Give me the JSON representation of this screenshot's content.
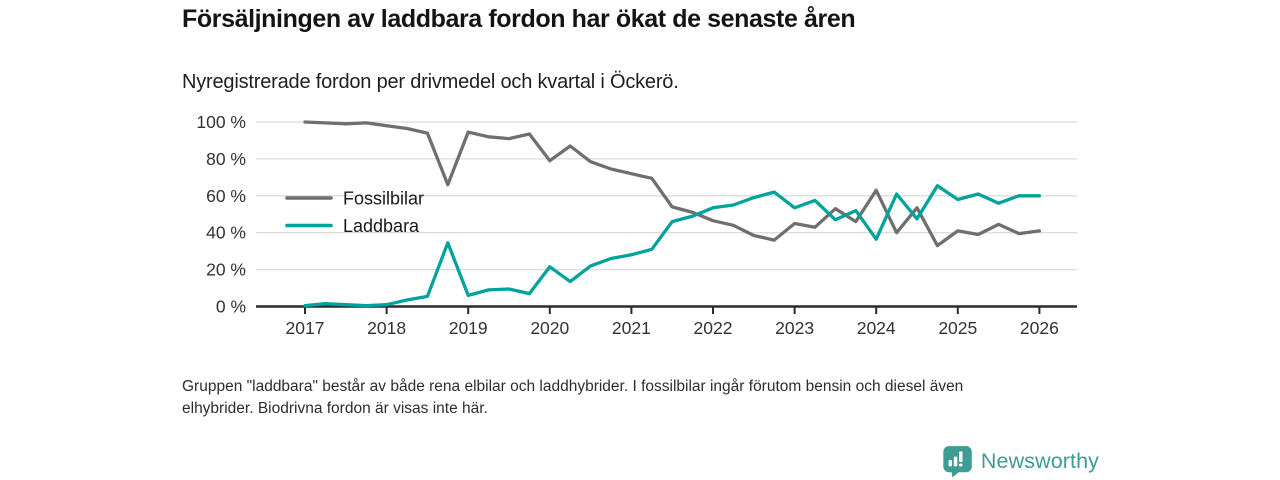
{
  "header": {
    "title": "Försäljningen av laddbara fordon har ökat de senaste åren",
    "subtitle": "Nyregistrerade fordon per drivmedel och kvartal i Öckerö."
  },
  "chart_data": {
    "type": "line",
    "x_unit": "quarter",
    "categories": [
      "2017-Q1",
      "2017-Q2",
      "2017-Q3",
      "2017-Q4",
      "2018-Q1",
      "2018-Q2",
      "2018-Q3",
      "2018-Q4",
      "2019-Q1",
      "2019-Q2",
      "2019-Q3",
      "2019-Q4",
      "2020-Q1",
      "2020-Q2",
      "2020-Q3",
      "2020-Q4",
      "2021-Q1",
      "2021-Q2",
      "2021-Q3",
      "2021-Q4",
      "2022-Q1",
      "2022-Q2",
      "2022-Q3",
      "2022-Q4",
      "2023-Q1",
      "2023-Q2",
      "2023-Q3",
      "2023-Q4",
      "2024-Q1",
      "2024-Q2",
      "2024-Q3",
      "2024-Q4",
      "2025-Q1",
      "2025-Q2",
      "2025-Q3",
      "2025-Q4",
      "2026-Q1"
    ],
    "series": [
      {
        "name": "Fossilbilar",
        "color": "#6f6f6f",
        "values": [
          100,
          99.5,
          99,
          99.5,
          98,
          96.5,
          94,
          66,
          94.5,
          92,
          91,
          93.5,
          79,
          87,
          78.5,
          74.5,
          72,
          69.5,
          54,
          51,
          46.5,
          44,
          38.5,
          36,
          45,
          43,
          53,
          46,
          63,
          40,
          53.5,
          33,
          41,
          39,
          44.5,
          39.5,
          41
        ]
      },
      {
        "name": "Laddbara",
        "color": "#00a39b",
        "values": [
          0.5,
          1.5,
          1,
          0.5,
          1,
          3.5,
          5.5,
          34.5,
          6,
          9,
          9.5,
          7,
          21.5,
          13.5,
          22,
          26,
          28,
          31,
          46,
          49,
          53.5,
          55,
          59,
          62,
          53.5,
          57.5,
          47,
          52,
          36.5,
          61,
          47.5,
          65.5,
          58,
          61,
          56,
          60,
          60
        ]
      }
    ],
    "ylim": [
      0,
      100
    ],
    "yticks": [
      0,
      20,
      40,
      60,
      80,
      100
    ],
    "ytick_labels": [
      "0 %",
      "20 %",
      "40 %",
      "60 %",
      "80 %",
      "100 %"
    ],
    "xticks": [
      2017,
      2018,
      2019,
      2020,
      2021,
      2022,
      2023,
      2024,
      2025,
      2026
    ],
    "xtick_labels": [
      "2017",
      "2018",
      "2019",
      "2020",
      "2021",
      "2022",
      "2023",
      "2024",
      "2025",
      "2026"
    ],
    "grid": true,
    "legend_position": "inside-left",
    "gridline_color": "#dcdcdc",
    "axis_color": "#2b2b2b"
  },
  "footer": {
    "note": "Gruppen \"laddbara\" består av både rena elbilar och laddhybrider. I fossilbilar ingår förutom bensin och diesel även elhybrider. Biodrivna fordon är visas inte här."
  },
  "branding": {
    "name": "Newsworthy",
    "color": "#3f9c95",
    "icon": "bar-chart-speech-bubble-icon"
  }
}
